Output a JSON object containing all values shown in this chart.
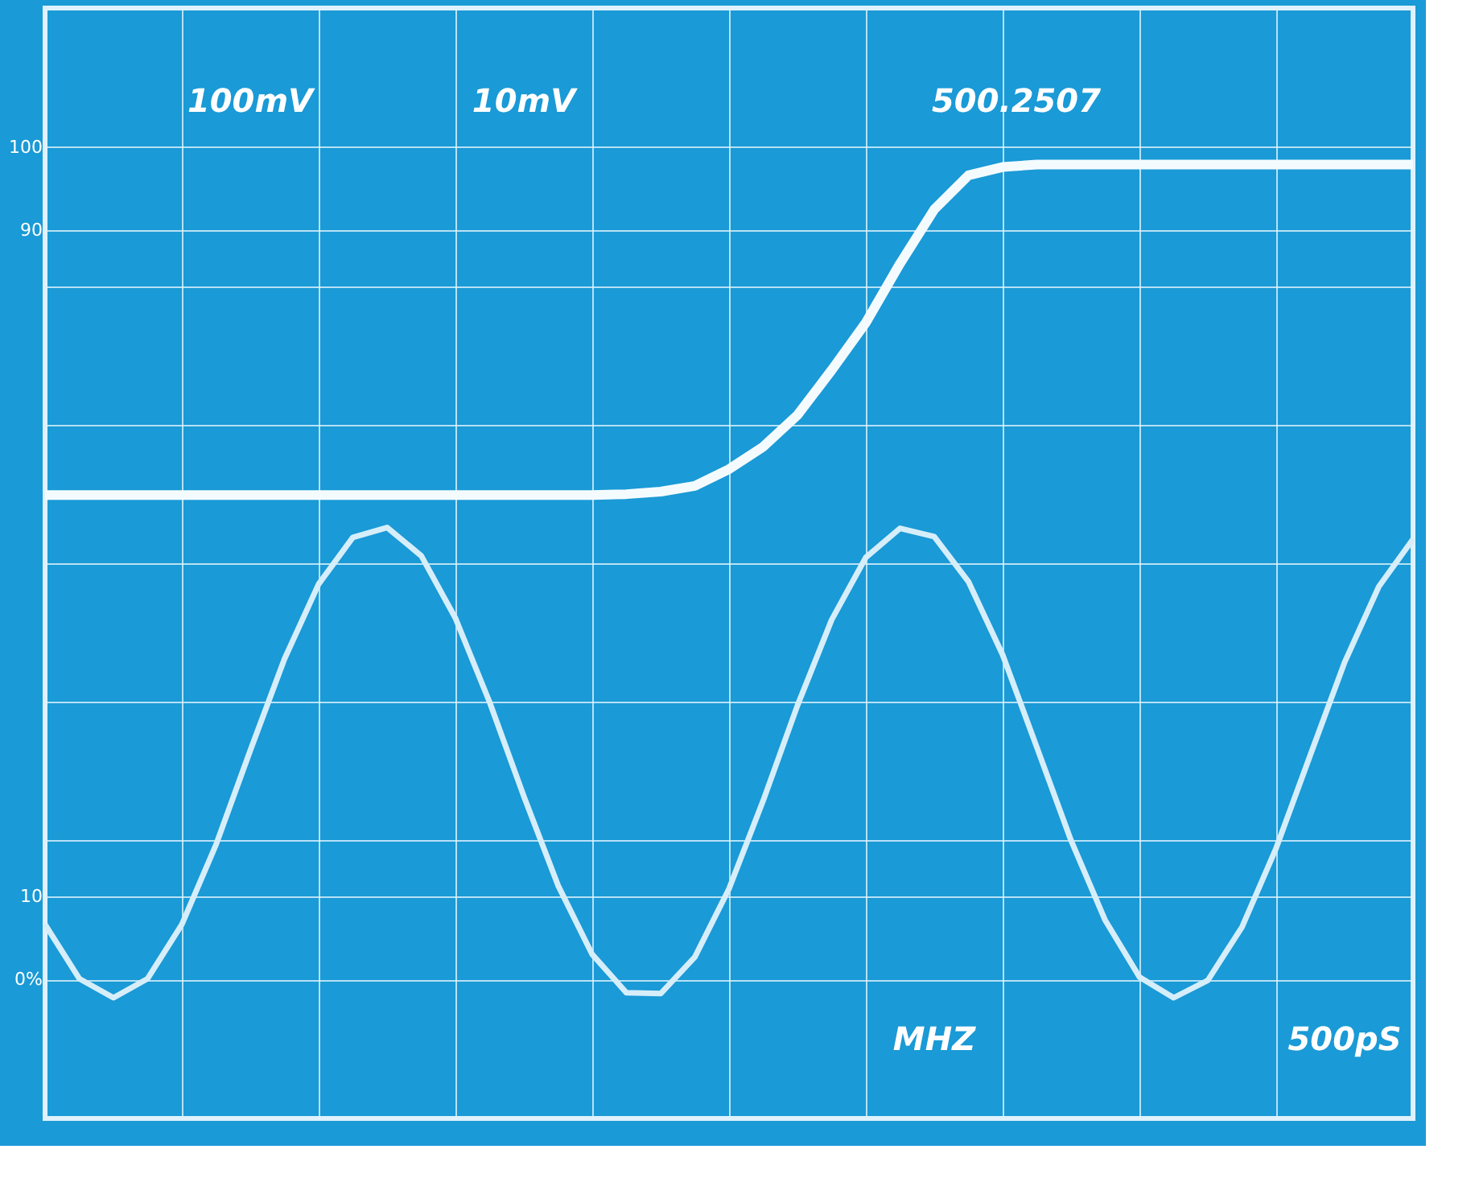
{
  "chart_data": {
    "type": "line",
    "categories": [
      null,
      null,
      null,
      null,
      null,
      null,
      null,
      null,
      null,
      null,
      null,
      null,
      null,
      null,
      null,
      null,
      null,
      null,
      null,
      null,
      null,
      null,
      null,
      null,
      null,
      null,
      null,
      null,
      null,
      null,
      null,
      null,
      null,
      null,
      null,
      null,
      null,
      null,
      null,
      null,
      null
    ],
    "ylim": [
      -16.7,
      116.7
    ],
    "yticks": [
      {
        "value": 0,
        "label": "0%"
      },
      10,
      {
        "value": 16.67,
        "label": null
      },
      {
        "value": 33.33,
        "label": null
      },
      {
        "value": 50,
        "label": null
      },
      {
        "value": 66.67,
        "label": null
      },
      {
        "value": 83.33,
        "label": null
      },
      90,
      100
    ],
    "grid": true,
    "marker": "none",
    "line_style": "solid",
    "series": [
      {
        "color": "#f4fbff",
        "values": [
          58.2,
          58.2,
          58.2,
          58.2,
          58.2,
          58.2,
          58.2,
          58.2,
          58.2,
          58.2,
          58.2,
          58.2,
          58.2,
          58.2,
          58.2,
          58.2,
          58.2,
          58.3,
          58.6,
          59.3,
          61.3,
          64.0,
          67.8,
          73.2,
          78.9,
          86.0,
          92.5,
          96.6,
          97.6,
          97.9,
          97.9,
          97.9,
          97.9,
          97.9,
          97.9,
          97.9,
          97.9,
          97.9,
          97.9,
          97.9,
          97.9
        ]
      },
      {
        "color": "#d6eefa",
        "values": [
          6.6,
          0.1,
          -2.2,
          0.1,
          6.6,
          16.2,
          27.5,
          38.5,
          47.5,
          53.1,
          54.3,
          50.9,
          43.4,
          33.3,
          22.0,
          11.3,
          3.0,
          -1.6,
          -1.7,
          2.7,
          10.9,
          21.5,
          32.9,
          43.2,
          50.7,
          54.2,
          53.2,
          47.8,
          39.0,
          27.9,
          16.7,
          7.1,
          0.3,
          -2.2,
          -0.1,
          6.3,
          15.8,
          27.0,
          38.1,
          47.2,
          52.9
        ]
      }
    ],
    "annotations": [
      "100mV",
      "10mV",
      "500.2507",
      "MHZ",
      "500pS"
    ]
  }
}
